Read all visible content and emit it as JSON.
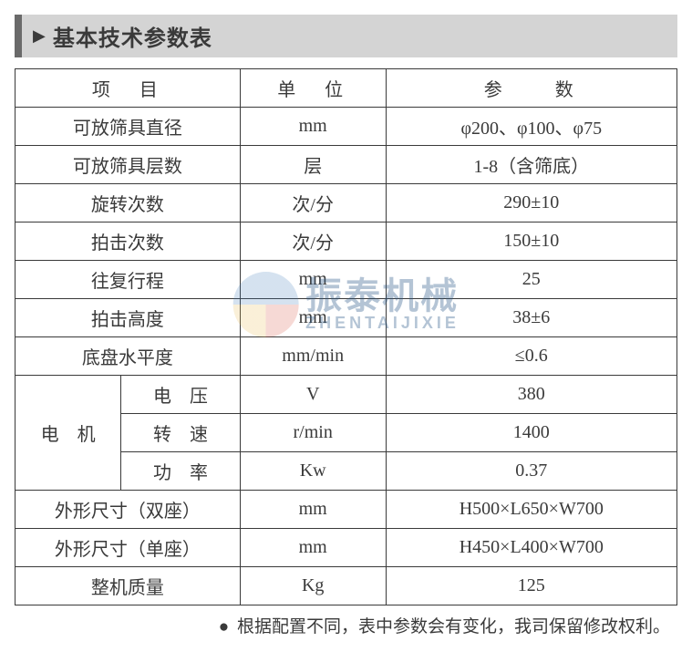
{
  "title": {
    "marker": "▶",
    "text": "基本技术参数表"
  },
  "table": {
    "columns": {
      "item": "项　目",
      "unit": "单　位",
      "param": "参　　数"
    },
    "rows": [
      {
        "item": "可放筛具直径",
        "unit": "mm",
        "param": "φ200、φ100、φ75"
      },
      {
        "item": "可放筛具层数",
        "unit": "层",
        "param": "1-8（含筛底）"
      },
      {
        "item": "旋转次数",
        "unit": "次/分",
        "param": "290±10"
      },
      {
        "item": "拍击次数",
        "unit": "次/分",
        "param": "150±10"
      },
      {
        "item": "往复行程",
        "unit": "mm",
        "param": "25"
      },
      {
        "item": "拍击高度",
        "unit": "mm",
        "param": "38±6"
      },
      {
        "item": "底盘水平度",
        "unit": "mm/min",
        "param": "≤0.6"
      }
    ],
    "motor": {
      "label": "电　机",
      "subrows": [
        {
          "sub": "电　压",
          "unit": "V",
          "param": "380"
        },
        {
          "sub": "转　速",
          "unit": "r/min",
          "param": "1400"
        },
        {
          "sub": "功　率",
          "unit": "Kw",
          "param": "0.37"
        }
      ]
    },
    "tail_rows": [
      {
        "item": "外形尺寸（双座）",
        "unit": "mm",
        "param": "H500×L650×W700"
      },
      {
        "item": "外形尺寸（单座）",
        "unit": "mm",
        "param": "H450×L400×W700"
      },
      {
        "item": "整机质量",
        "unit": "Kg",
        "param": "125"
      }
    ]
  },
  "watermark": {
    "cn": "振泰机械",
    "en": "ZHENTAIJIXIE"
  },
  "footnote": {
    "bullet": "●",
    "text": "根据配置不同，表中参数会有变化，我司保留修改权利。"
  },
  "styling": {
    "border_color": "#3a3a3a",
    "title_bg": "#d4d4d4",
    "title_accent": "#6a6a6a",
    "text_color": "#3a3a3a",
    "watermark_color": "#2a5a8a",
    "font_size_body": 20,
    "font_size_title": 24,
    "font_size_footnote": 19
  }
}
